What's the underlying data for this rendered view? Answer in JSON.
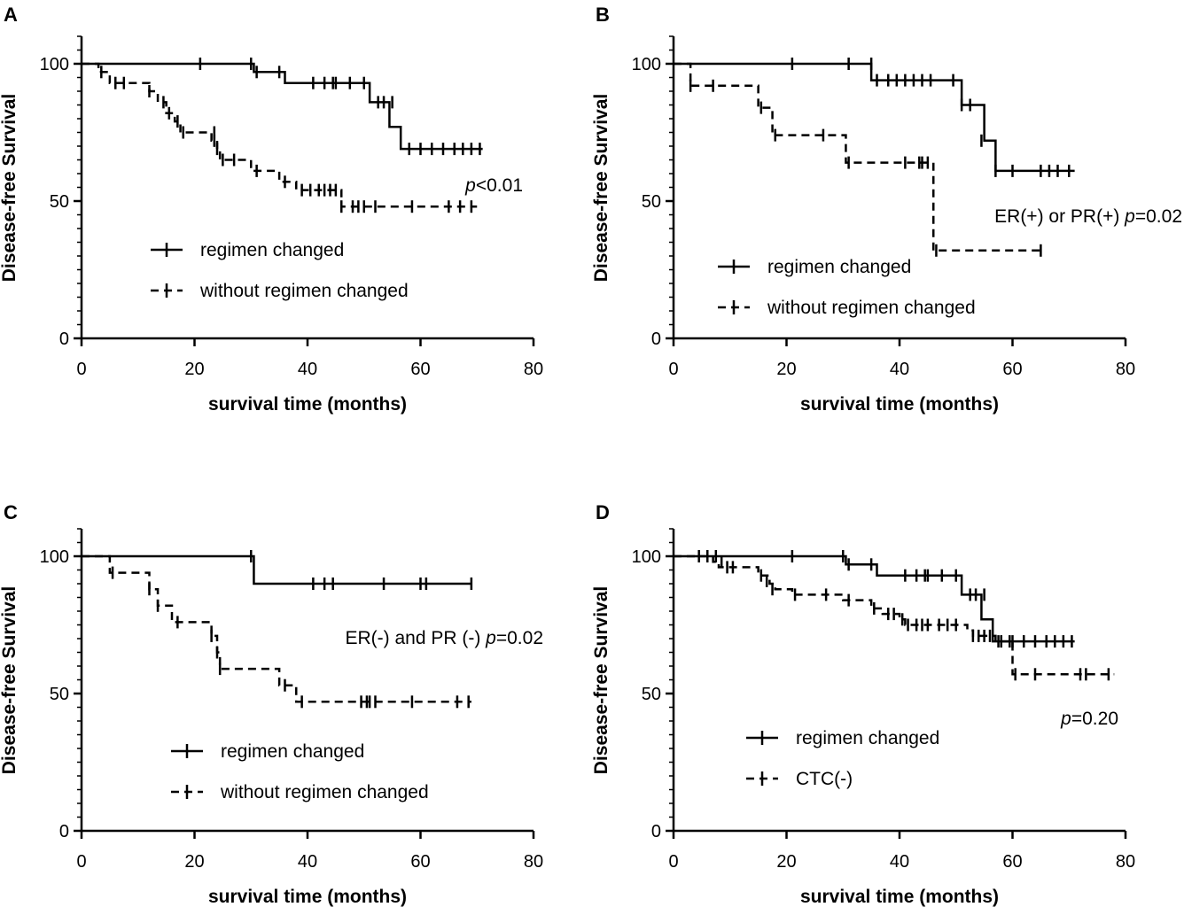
{
  "chart_data": [
    {
      "type": "line",
      "panel": "A",
      "title": "",
      "xlabel": "survival time (months)",
      "ylabel": "Disease-free Survival",
      "xlim": [
        0,
        80
      ],
      "ylim": [
        0,
        110
      ],
      "xticks": [
        0,
        20,
        40,
        60,
        80
      ],
      "yticks": [
        0,
        50,
        100
      ],
      "annotation": {
        "pvar": "p",
        "text": "<0.01"
      },
      "legend_position": "lower-left",
      "series": [
        {
          "name": "regimen changed",
          "style": "solid",
          "steps": [
            [
              0,
              100
            ],
            [
              30.5,
              97
            ],
            [
              36,
              93
            ],
            [
              51,
              86
            ],
            [
              54.5,
              77
            ],
            [
              56.5,
              69
            ],
            [
              71,
              69
            ]
          ],
          "censors": [
            [
              21,
              100
            ],
            [
              30,
              100
            ],
            [
              31,
              97
            ],
            [
              35,
              97
            ],
            [
              41,
              93
            ],
            [
              43,
              93
            ],
            [
              44.5,
              93
            ],
            [
              45,
              93
            ],
            [
              47.5,
              93
            ],
            [
              50,
              93
            ],
            [
              52.5,
              86
            ],
            [
              53.5,
              86
            ],
            [
              55,
              86
            ],
            [
              58,
              69
            ],
            [
              60,
              69
            ],
            [
              62,
              69
            ],
            [
              64,
              69
            ],
            [
              66,
              69
            ],
            [
              67.5,
              69
            ],
            [
              69,
              69
            ],
            [
              70.5,
              69
            ]
          ]
        },
        {
          "name": "without regimen changed",
          "style": "dashed",
          "steps": [
            [
              0,
              100
            ],
            [
              3,
              97
            ],
            [
              5,
              93
            ],
            [
              12,
              90
            ],
            [
              13.5,
              86
            ],
            [
              15,
              82
            ],
            [
              16.5,
              79
            ],
            [
              17.5,
              75
            ],
            [
              23,
              72
            ],
            [
              24,
              69
            ],
            [
              24.5,
              65
            ],
            [
              30,
              61
            ],
            [
              35,
              57
            ],
            [
              38,
              54
            ],
            [
              46,
              48
            ],
            [
              70,
              48
            ]
          ],
          "censors": [
            [
              3.5,
              97
            ],
            [
              6,
              93
            ],
            [
              7.5,
              93
            ],
            [
              12,
              90
            ],
            [
              14.5,
              86
            ],
            [
              15.5,
              82
            ],
            [
              17,
              79
            ],
            [
              18,
              75
            ],
            [
              23.5,
              75
            ],
            [
              23.5,
              72
            ],
            [
              24,
              69
            ],
            [
              25,
              65
            ],
            [
              27,
              65
            ],
            [
              31,
              61
            ],
            [
              36,
              57
            ],
            [
              39,
              54
            ],
            [
              40.5,
              54
            ],
            [
              42,
              54
            ],
            [
              43,
              54
            ],
            [
              44,
              54
            ],
            [
              45,
              54
            ],
            [
              46,
              48
            ],
            [
              48,
              48
            ],
            [
              49,
              48
            ],
            [
              50,
              48
            ],
            [
              52,
              48
            ],
            [
              58.5,
              48
            ],
            [
              65,
              48
            ],
            [
              67,
              48
            ],
            [
              69,
              48
            ]
          ]
        }
      ]
    },
    {
      "type": "line",
      "panel": "B",
      "title": "",
      "xlabel": "survival time (months)",
      "ylabel": "Disease-free Survival",
      "xlim": [
        0,
        80
      ],
      "ylim": [
        0,
        110
      ],
      "xticks": [
        0,
        20,
        40,
        60,
        80
      ],
      "yticks": [
        0,
        50,
        100
      ],
      "annotation": {
        "prefix": "ER(+) or PR(+) ",
        "pvar": "p",
        "text": "=0.02"
      },
      "legend_position": "lower-left",
      "series": [
        {
          "name": "regimen changed",
          "style": "solid",
          "steps": [
            [
              0,
              100
            ],
            [
              35,
              94
            ],
            [
              51,
              85
            ],
            [
              55,
              72
            ],
            [
              57,
              61
            ],
            [
              71,
              61
            ]
          ],
          "censors": [
            [
              21,
              100
            ],
            [
              31,
              100
            ],
            [
              35,
              100
            ],
            [
              36,
              94
            ],
            [
              38,
              94
            ],
            [
              39.5,
              94
            ],
            [
              41,
              94
            ],
            [
              42.5,
              94
            ],
            [
              44,
              94
            ],
            [
              45.5,
              94
            ],
            [
              49.5,
              94
            ],
            [
              51,
              85
            ],
            [
              52.5,
              85
            ],
            [
              54.5,
              72
            ],
            [
              57,
              61
            ],
            [
              60,
              61
            ],
            [
              65,
              61
            ],
            [
              66.5,
              61
            ],
            [
              68,
              61
            ],
            [
              70,
              61
            ]
          ]
        },
        {
          "name": "without regimen changed",
          "style": "dashed",
          "steps": [
            [
              0,
              100
            ],
            [
              3,
              92
            ],
            [
              15,
              84
            ],
            [
              17.5,
              74
            ],
            [
              30.5,
              64
            ],
            [
              46,
              32
            ],
            [
              65,
              32
            ]
          ],
          "censors": [
            [
              3,
              92
            ],
            [
              7,
              92
            ],
            [
              15.5,
              84
            ],
            [
              18,
              74
            ],
            [
              26.5,
              74
            ],
            [
              31,
              64
            ],
            [
              41,
              64
            ],
            [
              43.5,
              64
            ],
            [
              44,
              64
            ],
            [
              45,
              64
            ],
            [
              46.5,
              32
            ],
            [
              65,
              32
            ]
          ]
        }
      ]
    },
    {
      "type": "line",
      "panel": "C",
      "title": "",
      "xlabel": "survival time (months)",
      "ylabel": "Disease-free Survival",
      "xlim": [
        0,
        80
      ],
      "ylim": [
        0,
        110
      ],
      "xticks": [
        0,
        20,
        40,
        60,
        80
      ],
      "yticks": [
        0,
        50,
        100
      ],
      "annotation": {
        "prefix": "ER(-) and PR (-) ",
        "pvar": "p",
        "text": "=0.02"
      },
      "legend_position": "lower-left",
      "series": [
        {
          "name": "regimen changed",
          "style": "solid",
          "steps": [
            [
              0,
              100
            ],
            [
              30.5,
              90
            ],
            [
              69,
              90
            ]
          ],
          "censors": [
            [
              30,
              100
            ],
            [
              41,
              90
            ],
            [
              43,
              90
            ],
            [
              44.5,
              90
            ],
            [
              53.5,
              90
            ],
            [
              60,
              90
            ],
            [
              61,
              90
            ],
            [
              69,
              90
            ]
          ]
        },
        {
          "name": "without regimen changed",
          "style": "dashed",
          "steps": [
            [
              0,
              100
            ],
            [
              5,
              94
            ],
            [
              12,
              88
            ],
            [
              13.5,
              82
            ],
            [
              16,
              76
            ],
            [
              23,
              71
            ],
            [
              24,
              65
            ],
            [
              24.5,
              59
            ],
            [
              35,
              53
            ],
            [
              38,
              47
            ],
            [
              69,
              47
            ]
          ],
          "censors": [
            [
              5.5,
              94
            ],
            [
              12,
              88
            ],
            [
              13.5,
              82
            ],
            [
              17,
              76
            ],
            [
              23,
              71
            ],
            [
              24,
              65
            ],
            [
              24.5,
              59
            ],
            [
              36,
              53
            ],
            [
              39,
              47
            ],
            [
              49.5,
              47
            ],
            [
              50.5,
              47
            ],
            [
              51,
              47
            ],
            [
              52,
              47
            ],
            [
              58.5,
              47
            ],
            [
              66.5,
              47
            ],
            [
              68.5,
              47
            ]
          ]
        }
      ]
    },
    {
      "type": "line",
      "panel": "D",
      "title": "",
      "xlabel": "survival time (months)",
      "ylabel": "Disease-free Survival",
      "xlim": [
        0,
        80
      ],
      "ylim": [
        0,
        110
      ],
      "xticks": [
        0,
        20,
        40,
        60,
        80
      ],
      "yticks": [
        0,
        50,
        100
      ],
      "annotation": {
        "pvar": "p",
        "text": "=0.20"
      },
      "legend_position": "lower-left",
      "series": [
        {
          "name": "regimen changed",
          "style": "solid",
          "steps": [
            [
              0,
              100
            ],
            [
              30.5,
              97
            ],
            [
              36,
              93
            ],
            [
              51,
              86
            ],
            [
              54.5,
              77
            ],
            [
              56.5,
              69
            ],
            [
              71,
              69
            ]
          ],
          "censors": [
            [
              21,
              100
            ],
            [
              30,
              100
            ],
            [
              31,
              97
            ],
            [
              35,
              97
            ],
            [
              41,
              93
            ],
            [
              43,
              93
            ],
            [
              44.5,
              93
            ],
            [
              45,
              93
            ],
            [
              47.5,
              93
            ],
            [
              50,
              93
            ],
            [
              52.5,
              86
            ],
            [
              53.5,
              86
            ],
            [
              55,
              86
            ],
            [
              58,
              69
            ],
            [
              60,
              69
            ],
            [
              62,
              69
            ],
            [
              64,
              69
            ],
            [
              66,
              69
            ],
            [
              67.5,
              69
            ],
            [
              69,
              69
            ],
            [
              70.5,
              69
            ]
          ]
        },
        {
          "name": "CTC(-)",
          "style": "dashed",
          "steps": [
            [
              0,
              100
            ],
            [
              7,
              98
            ],
            [
              8,
              96
            ],
            [
              15,
              93
            ],
            [
              17,
              90
            ],
            [
              18,
              88
            ],
            [
              21,
              86
            ],
            [
              30,
              84
            ],
            [
              35,
              81
            ],
            [
              37,
              79
            ],
            [
              40,
              77
            ],
            [
              41,
              75
            ],
            [
              52,
              73
            ],
            [
              53,
              71
            ],
            [
              57,
              69
            ],
            [
              60,
              57
            ],
            [
              78,
              57
            ]
          ],
          "censors": [
            [
              4.5,
              100
            ],
            [
              6,
              100
            ],
            [
              7.5,
              100
            ],
            [
              8.5,
              98
            ],
            [
              9.5,
              96
            ],
            [
              10.5,
              96
            ],
            [
              15.5,
              93
            ],
            [
              16.5,
              91
            ],
            [
              17.5,
              88
            ],
            [
              21.5,
              86
            ],
            [
              27,
              86
            ],
            [
              31,
              84
            ],
            [
              35.5,
              81
            ],
            [
              38,
              79
            ],
            [
              39,
              79
            ],
            [
              40.5,
              77
            ],
            [
              41.5,
              75
            ],
            [
              43,
              75
            ],
            [
              44,
              75
            ],
            [
              45,
              75
            ],
            [
              47,
              75
            ],
            [
              48.5,
              75
            ],
            [
              50,
              75
            ],
            [
              53,
              71
            ],
            [
              54,
              71
            ],
            [
              55,
              71
            ],
            [
              56,
              71
            ],
            [
              57.5,
              69
            ],
            [
              59.5,
              69
            ],
            [
              60.5,
              57
            ],
            [
              64,
              57
            ],
            [
              72,
              57
            ],
            [
              73,
              57
            ],
            [
              77,
              57
            ]
          ]
        }
      ]
    }
  ]
}
